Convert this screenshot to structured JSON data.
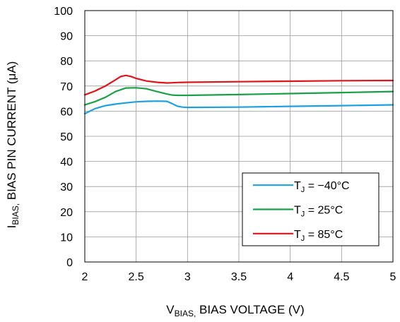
{
  "chart_data": {
    "type": "line",
    "xlabel": {
      "main": "V",
      "sub": "BIAS,",
      "rest": " BIAS VOLTAGE (V)"
    },
    "ylabel": {
      "main": "I",
      "sub": "BIAS,",
      "rest": " BIAS PIN CURRENT (μA)"
    },
    "xlim": [
      2,
      5
    ],
    "ylim": [
      0,
      100
    ],
    "xticks": [
      2,
      2.5,
      3,
      3.5,
      4,
      4.5,
      5
    ],
    "xtick_labels": [
      "2",
      "2.5",
      "3",
      "3.5",
      "4",
      "4.5",
      "5"
    ],
    "yticks": [
      0,
      10,
      20,
      30,
      40,
      50,
      60,
      70,
      80,
      90,
      100
    ],
    "ytick_labels": [
      "0",
      "10",
      "20",
      "30",
      "40",
      "50",
      "60",
      "70",
      "80",
      "90",
      "100"
    ],
    "grid": true,
    "legend_position": "bottom-right",
    "series": [
      {
        "label_main": "T",
        "label_sub": "J",
        "label_rest": " = −40°C",
        "color": "#1ea0e0",
        "x": [
          2.0,
          2.1,
          2.2,
          2.3,
          2.4,
          2.5,
          2.6,
          2.7,
          2.8,
          2.85,
          2.9,
          2.95,
          3.0,
          3.5,
          4.0,
          4.5,
          5.0
        ],
        "y": [
          59.0,
          61.0,
          62.2,
          62.8,
          63.3,
          63.7,
          63.9,
          64.0,
          63.9,
          63.0,
          62.0,
          61.6,
          61.5,
          61.6,
          61.9,
          62.2,
          62.5
        ]
      },
      {
        "label_main": "T",
        "label_sub": "J",
        "label_rest": " = 25°C",
        "color": "#1aa04a",
        "x": [
          2.0,
          2.1,
          2.2,
          2.3,
          2.4,
          2.5,
          2.6,
          2.7,
          2.8,
          2.85,
          2.9,
          3.0,
          3.5,
          4.0,
          4.5,
          5.0
        ],
        "y": [
          62.5,
          63.8,
          65.5,
          67.8,
          69.2,
          69.3,
          68.9,
          67.8,
          66.8,
          66.4,
          66.3,
          66.3,
          66.6,
          67.0,
          67.4,
          67.8
        ]
      },
      {
        "label_main": "T",
        "label_sub": "J",
        "label_rest": " = 85°C",
        "color": "#e0151b",
        "x": [
          2.0,
          2.1,
          2.2,
          2.3,
          2.35,
          2.4,
          2.45,
          2.5,
          2.6,
          2.7,
          2.8,
          2.85,
          2.9,
          3.0,
          3.5,
          4.0,
          4.5,
          5.0
        ],
        "y": [
          66.5,
          68.0,
          70.0,
          72.5,
          73.8,
          74.2,
          73.8,
          73.0,
          72.0,
          71.5,
          71.2,
          71.3,
          71.4,
          71.5,
          71.7,
          71.9,
          72.1,
          72.2
        ]
      }
    ]
  }
}
